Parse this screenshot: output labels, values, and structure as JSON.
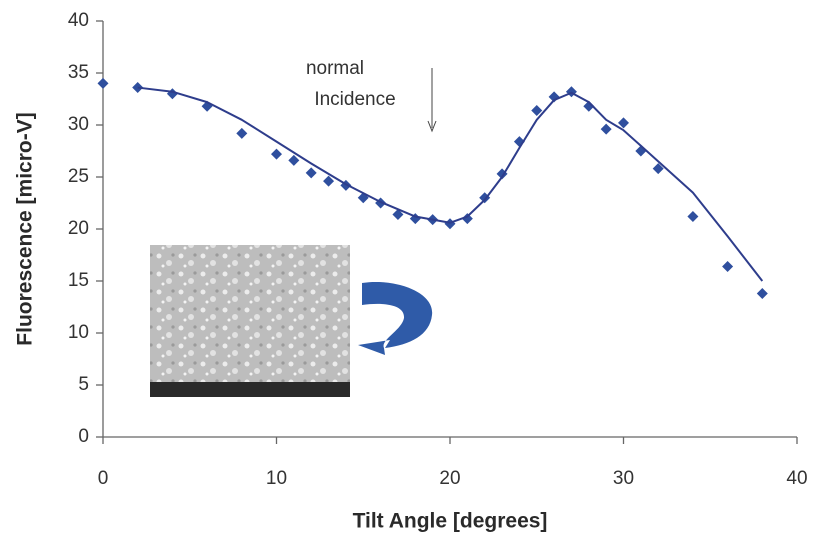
{
  "chart_data": {
    "type": "scatter",
    "x_label": "Tilt Angle [degrees]",
    "y_label": "Fluorescence [micro-V]",
    "annotations": [
      "normal",
      "Incidence"
    ],
    "xlim": [
      0,
      40
    ],
    "xticks": [
      0,
      10,
      20,
      30,
      40
    ],
    "ylim": [
      0,
      40
    ],
    "yticks": [
      0,
      5,
      10,
      15,
      20,
      25,
      30,
      35,
      40
    ],
    "grid": false,
    "series": [
      {
        "color": "#2f4f9e",
        "marker": "diamond",
        "x": [
          0,
          2,
          4,
          6,
          8,
          10,
          11,
          12,
          13,
          14,
          15,
          16,
          17,
          18,
          19,
          20,
          21,
          22,
          23,
          24,
          25,
          26,
          27,
          28,
          29,
          30,
          31,
          32,
          34,
          36,
          38
        ],
        "values": [
          34,
          33.6,
          33,
          31.8,
          29.2,
          27.2,
          26.6,
          25.4,
          24.6,
          24.2,
          23,
          22.5,
          21.4,
          21,
          20.9,
          20.5,
          21,
          23,
          25.3,
          28.4,
          31.4,
          32.7,
          33.2,
          31.8,
          29.6,
          30.2,
          27.5,
          25.8,
          21.2,
          16.4,
          13.8
        ]
      },
      {
        "color": "#2e3d8c",
        "marker": "line",
        "x": [
          2,
          4,
          6,
          8,
          10,
          12,
          14,
          16,
          18,
          20,
          21,
          22,
          23,
          24,
          25,
          26,
          27,
          28,
          29,
          30,
          31,
          32,
          34,
          36,
          38
        ],
        "values": [
          33.6,
          33.2,
          32.2,
          30.5,
          28.4,
          26.3,
          24.3,
          22.6,
          21.2,
          20.6,
          21.2,
          22.8,
          25,
          27.8,
          30.5,
          32.4,
          33.1,
          32.2,
          30.5,
          29.5,
          28,
          26.5,
          23.5,
          19.3,
          15
        ]
      }
    ]
  }
}
